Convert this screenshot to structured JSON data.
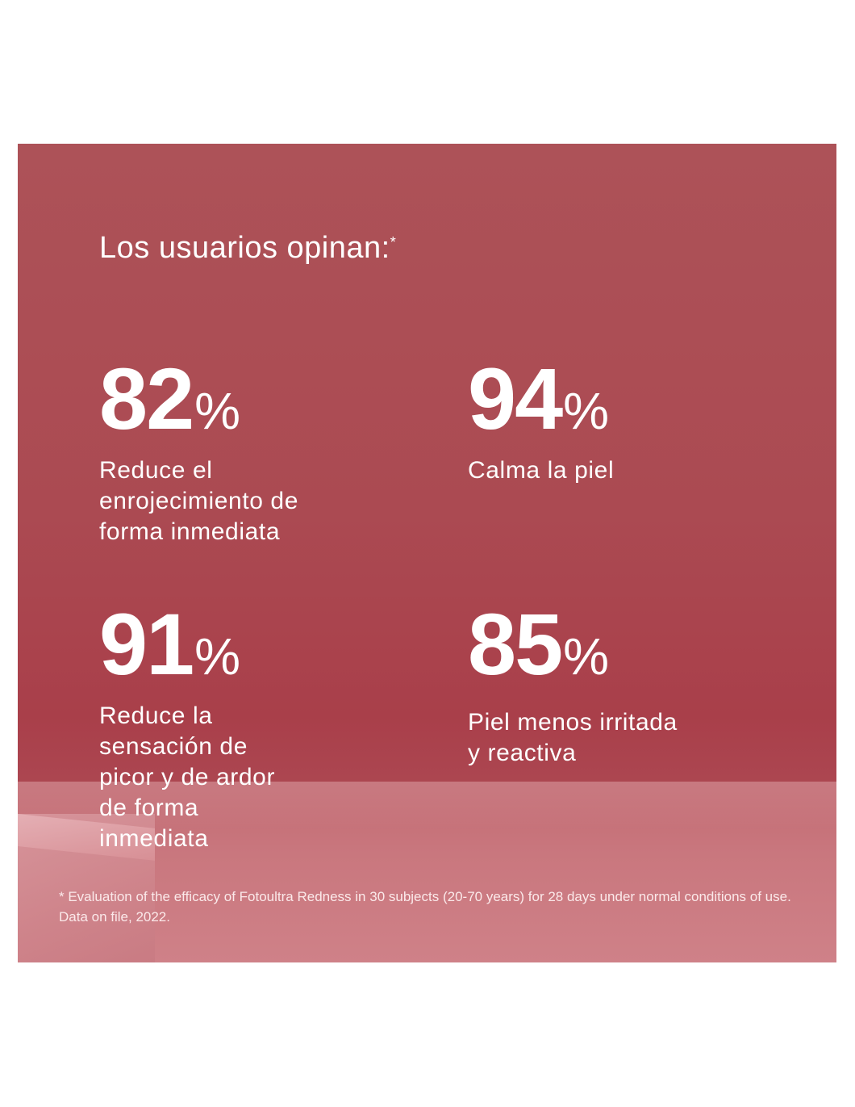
{
  "title": "Los usuarios opinan:",
  "title_mark": "*",
  "stats": [
    {
      "value": "82",
      "unit": "%",
      "description": "Reduce el\nenrojecimiento de\nforma inmediata"
    },
    {
      "value": "94",
      "unit": "%",
      "description": "Calma la piel"
    },
    {
      "value": "91",
      "unit": "%",
      "description": "Reduce la\nsensación de\npicor y de ardor\nde forma\ninmediata"
    },
    {
      "value": "85",
      "unit": "%",
      "description": "Piel menos irritada\ny reactiva"
    }
  ],
  "footnote": "* Evaluation of the efficacy of Fotoultra Redness in 30 subjects (20-70 years) for 28 days under normal conditions of use. Data on file, 2022.",
  "colors": {
    "background": "#ab4a52",
    "text": "#ffffff"
  }
}
